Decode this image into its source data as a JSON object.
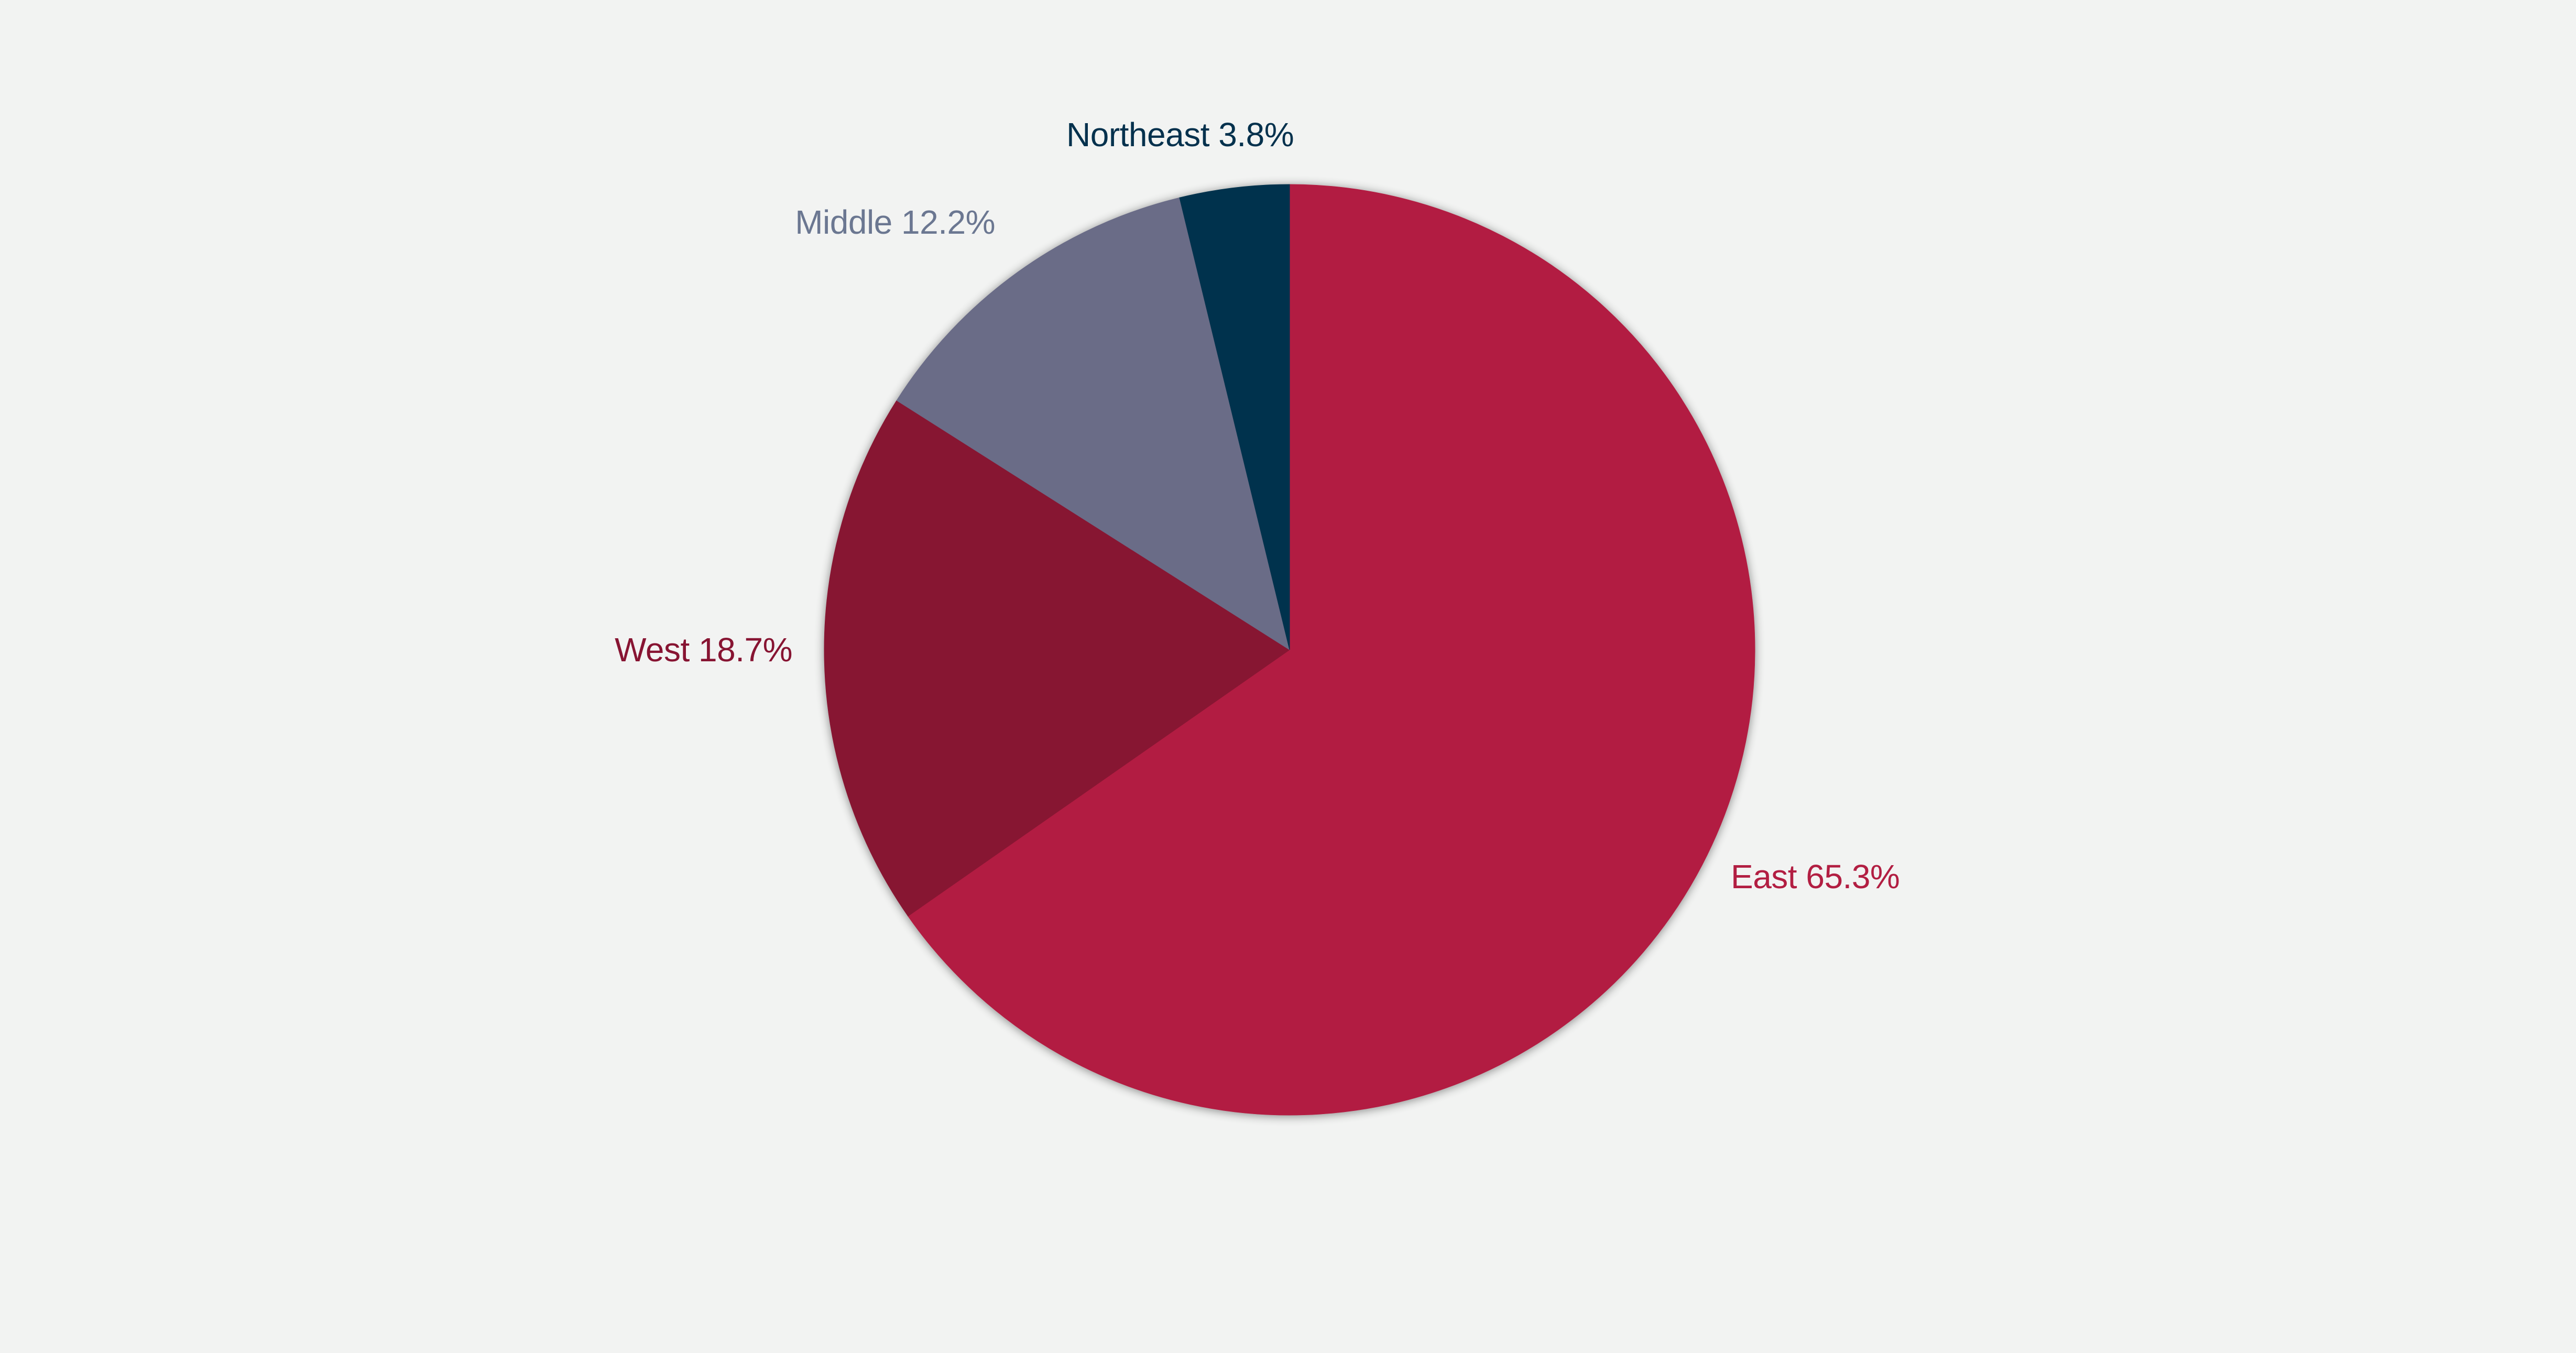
{
  "colors": {
    "background": "#f2f3f2",
    "east": "#b21e42",
    "west": "#871432",
    "middle": "#6b6c87",
    "northeast": "#04314d"
  },
  "chart_data": {
    "type": "pie",
    "start_angle_deg": 0,
    "direction": "clockwise",
    "legend": "none",
    "slices": [
      {
        "name": "East",
        "value": 65.3,
        "label": "East 65.3%",
        "color": "#b21e42",
        "label_color": "#b21e42"
      },
      {
        "name": "West",
        "value": 18.7,
        "label": "West  18.7%",
        "color": "#871432",
        "label_color": "#871432"
      },
      {
        "name": "Middle",
        "value": 12.2,
        "label": "Middle 12.2%",
        "color": "#6b6c87",
        "label_color": "#6b7791"
      },
      {
        "name": "Northeast",
        "value": 3.8,
        "label": "Northeast 3.8%",
        "color": "#04314d",
        "label_color": "#04314d"
      }
    ]
  }
}
